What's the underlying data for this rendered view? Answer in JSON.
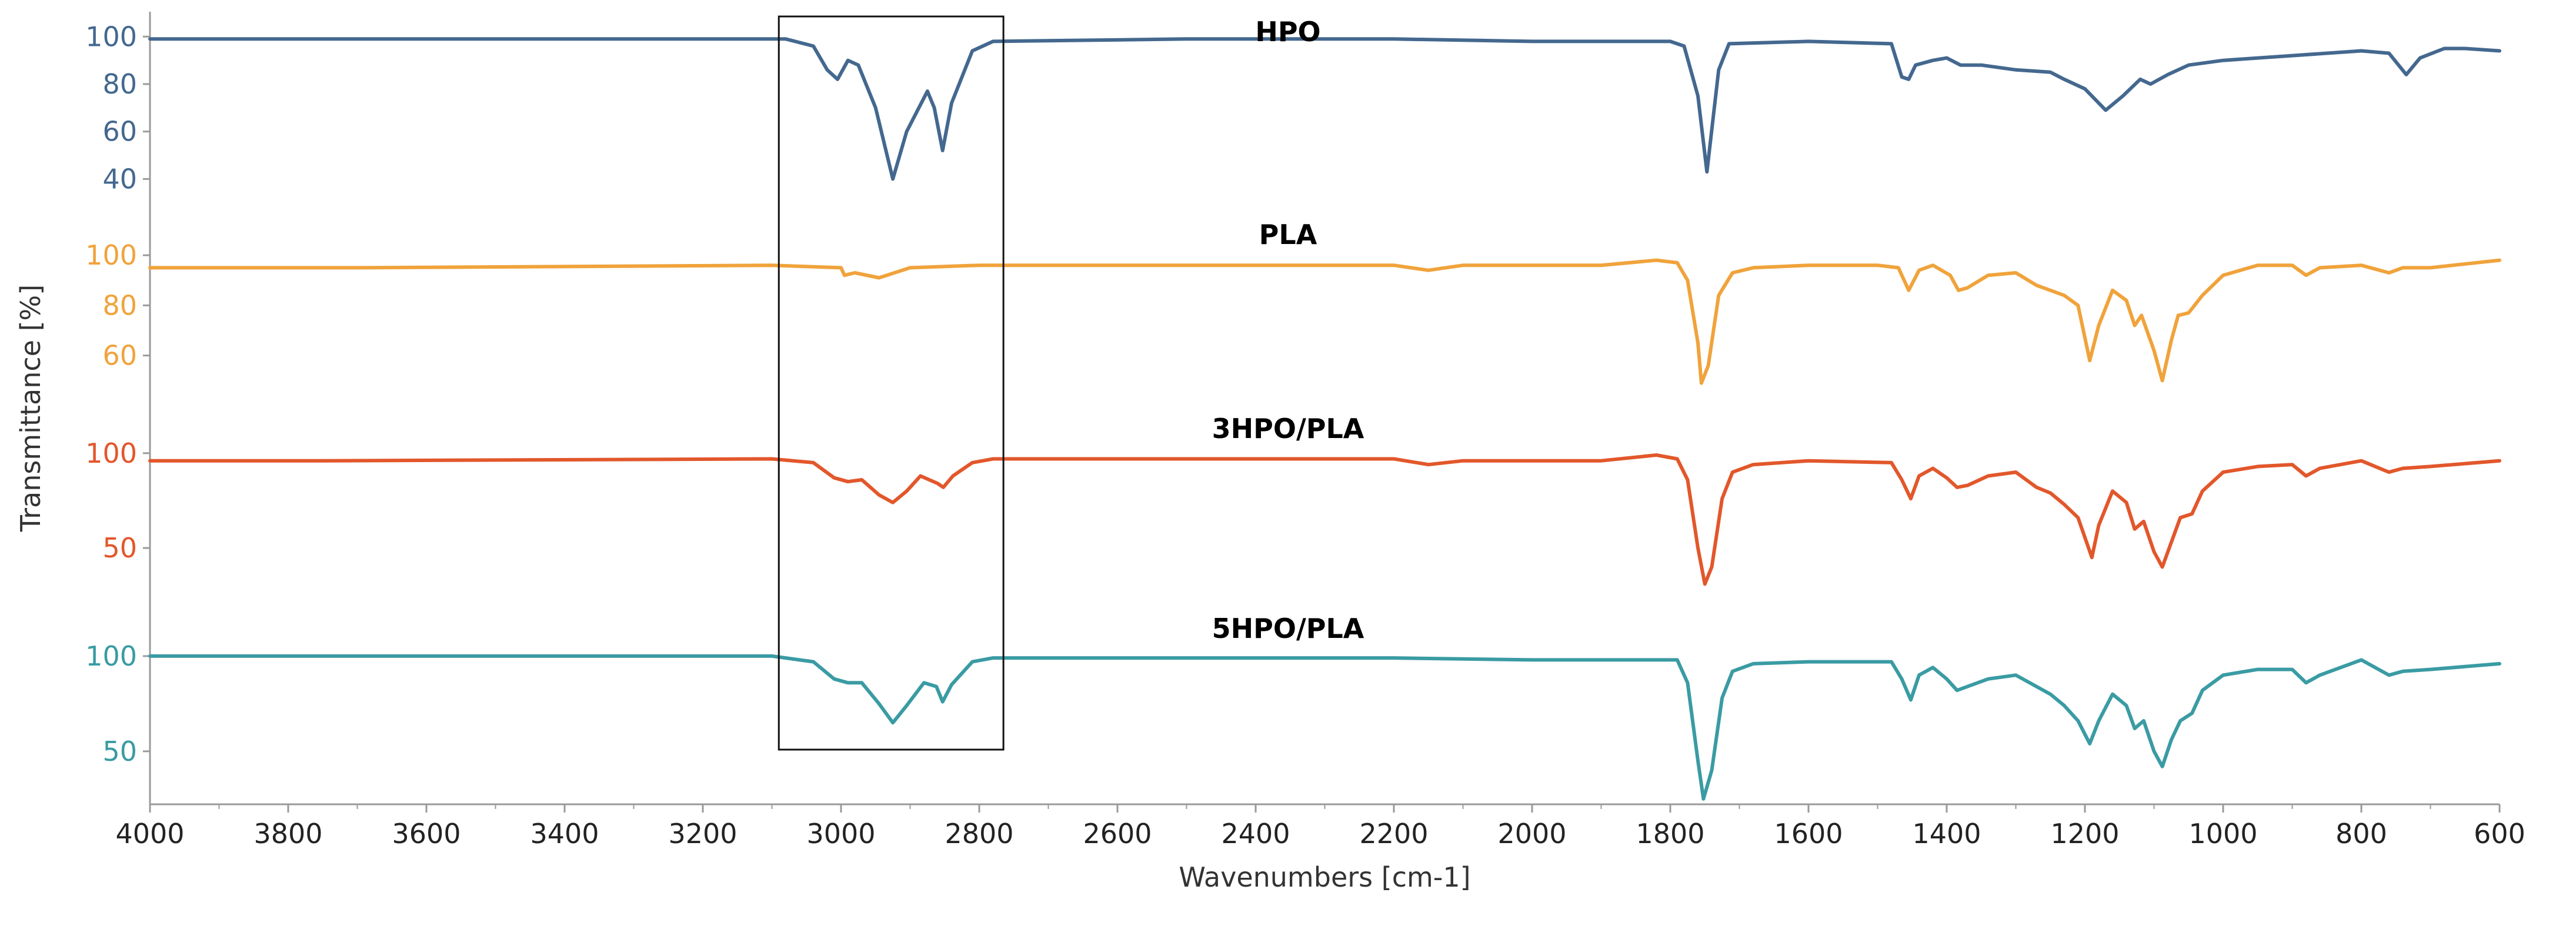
{
  "chart_data": {
    "type": "line",
    "title": "",
    "xlabel": "Wavenumbers [cm-1]",
    "ylabel": "Transmittance [%]",
    "xlim": [
      4000,
      600
    ],
    "x_reversed": true,
    "grid": false,
    "x_ticks": [
      "4000",
      "3800",
      "3600",
      "3400",
      "3200",
      "3000",
      "2800",
      "2600",
      "2400",
      "2200",
      "2000",
      "1800",
      "1600",
      "1400",
      "1200",
      "1000",
      "800",
      "600"
    ],
    "highlight_region": {
      "x": [
        3090,
        2765
      ],
      "label": ""
    },
    "series": [
      {
        "name": "HPO",
        "color": "#44688f",
        "ylim": [
          25,
          108
        ],
        "y_ticks": [
          "100",
          "80",
          "60",
          "40"
        ],
        "points": [
          [
            4000,
            99
          ],
          [
            3750,
            99
          ],
          [
            3200,
            99
          ],
          [
            3080,
            99
          ],
          [
            3040,
            96
          ],
          [
            3020,
            86
          ],
          [
            3005,
            82
          ],
          [
            2990,
            90
          ],
          [
            2975,
            88
          ],
          [
            2950,
            70
          ],
          [
            2925,
            40
          ],
          [
            2905,
            60
          ],
          [
            2875,
            77
          ],
          [
            2865,
            70
          ],
          [
            2853,
            52
          ],
          [
            2840,
            72
          ],
          [
            2810,
            94
          ],
          [
            2780,
            98
          ],
          [
            2500,
            99
          ],
          [
            2200,
            99
          ],
          [
            2000,
            98
          ],
          [
            1800,
            98
          ],
          [
            1780,
            96
          ],
          [
            1760,
            75
          ],
          [
            1747,
            43
          ],
          [
            1730,
            86
          ],
          [
            1715,
            97
          ],
          [
            1600,
            98
          ],
          [
            1480,
            97
          ],
          [
            1465,
            83
          ],
          [
            1455,
            82
          ],
          [
            1445,
            88
          ],
          [
            1420,
            90
          ],
          [
            1400,
            91
          ],
          [
            1380,
            88
          ],
          [
            1350,
            88
          ],
          [
            1300,
            86
          ],
          [
            1250,
            85
          ],
          [
            1230,
            82
          ],
          [
            1200,
            78
          ],
          [
            1170,
            69
          ],
          [
            1145,
            75
          ],
          [
            1120,
            82
          ],
          [
            1105,
            80
          ],
          [
            1080,
            84
          ],
          [
            1050,
            88
          ],
          [
            1000,
            90
          ],
          [
            900,
            92
          ],
          [
            800,
            94
          ],
          [
            760,
            93
          ],
          [
            735,
            84
          ],
          [
            715,
            91
          ],
          [
            680,
            95
          ],
          [
            650,
            95
          ],
          [
            600,
            94
          ]
        ]
      },
      {
        "name": "PLA",
        "color": "#f0a33b",
        "ylim": [
          40,
          108
        ],
        "y_ticks": [
          "100",
          "80",
          "60"
        ],
        "points": [
          [
            4000,
            95
          ],
          [
            3700,
            95
          ],
          [
            3100,
            96
          ],
          [
            3000,
            95
          ],
          [
            2995,
            92
          ],
          [
            2980,
            93
          ],
          [
            2945,
            91
          ],
          [
            2900,
            95
          ],
          [
            2800,
            96
          ],
          [
            2200,
            96
          ],
          [
            2150,
            94
          ],
          [
            2100,
            96
          ],
          [
            1900,
            96
          ],
          [
            1820,
            98
          ],
          [
            1790,
            97
          ],
          [
            1775,
            90
          ],
          [
            1760,
            65
          ],
          [
            1755,
            49
          ],
          [
            1745,
            56
          ],
          [
            1730,
            84
          ],
          [
            1710,
            93
          ],
          [
            1680,
            95
          ],
          [
            1600,
            96
          ],
          [
            1500,
            96
          ],
          [
            1470,
            95
          ],
          [
            1455,
            86
          ],
          [
            1440,
            94
          ],
          [
            1420,
            96
          ],
          [
            1395,
            92
          ],
          [
            1383,
            86
          ],
          [
            1370,
            87
          ],
          [
            1340,
            92
          ],
          [
            1300,
            93
          ],
          [
            1270,
            88
          ],
          [
            1250,
            86
          ],
          [
            1230,
            84
          ],
          [
            1210,
            80
          ],
          [
            1193,
            58
          ],
          [
            1180,
            72
          ],
          [
            1160,
            86
          ],
          [
            1140,
            82
          ],
          [
            1128,
            72
          ],
          [
            1118,
            76
          ],
          [
            1100,
            62
          ],
          [
            1088,
            50
          ],
          [
            1075,
            66
          ],
          [
            1065,
            76
          ],
          [
            1050,
            77
          ],
          [
            1030,
            84
          ],
          [
            1000,
            92
          ],
          [
            950,
            96
          ],
          [
            900,
            96
          ],
          [
            880,
            92
          ],
          [
            860,
            95
          ],
          [
            800,
            96
          ],
          [
            760,
            93
          ],
          [
            740,
            95
          ],
          [
            700,
            95
          ],
          [
            600,
            98
          ]
        ]
      },
      {
        "name": "3HPO/PLA",
        "color": "#e2572b",
        "ylim": [
          15,
          108
        ],
        "y_ticks": [
          "100",
          "50"
        ],
        "points": [
          [
            4000,
            96
          ],
          [
            3750,
            96
          ],
          [
            3100,
            97
          ],
          [
            3040,
            95
          ],
          [
            3010,
            87
          ],
          [
            2990,
            85
          ],
          [
            2970,
            86
          ],
          [
            2945,
            78
          ],
          [
            2925,
            74
          ],
          [
            2905,
            80
          ],
          [
            2885,
            88
          ],
          [
            2860,
            84
          ],
          [
            2852,
            82
          ],
          [
            2838,
            88
          ],
          [
            2810,
            95
          ],
          [
            2780,
            97
          ],
          [
            2500,
            97
          ],
          [
            2200,
            97
          ],
          [
            2150,
            94
          ],
          [
            2100,
            96
          ],
          [
            1900,
            96
          ],
          [
            1820,
            99
          ],
          [
            1790,
            97
          ],
          [
            1775,
            86
          ],
          [
            1760,
            50
          ],
          [
            1750,
            31
          ],
          [
            1740,
            40
          ],
          [
            1725,
            76
          ],
          [
            1710,
            90
          ],
          [
            1680,
            94
          ],
          [
            1600,
            96
          ],
          [
            1480,
            95
          ],
          [
            1465,
            86
          ],
          [
            1452,
            76
          ],
          [
            1440,
            88
          ],
          [
            1420,
            92
          ],
          [
            1400,
            87
          ],
          [
            1385,
            82
          ],
          [
            1370,
            83
          ],
          [
            1340,
            88
          ],
          [
            1300,
            90
          ],
          [
            1270,
            82
          ],
          [
            1250,
            79
          ],
          [
            1230,
            73
          ],
          [
            1210,
            66
          ],
          [
            1190,
            45
          ],
          [
            1180,
            62
          ],
          [
            1160,
            80
          ],
          [
            1140,
            74
          ],
          [
            1128,
            60
          ],
          [
            1115,
            64
          ],
          [
            1100,
            48
          ],
          [
            1088,
            40
          ],
          [
            1075,
            53
          ],
          [
            1062,
            66
          ],
          [
            1045,
            68
          ],
          [
            1030,
            80
          ],
          [
            1000,
            90
          ],
          [
            950,
            93
          ],
          [
            900,
            94
          ],
          [
            880,
            88
          ],
          [
            860,
            92
          ],
          [
            800,
            96
          ],
          [
            760,
            90
          ],
          [
            740,
            92
          ],
          [
            700,
            93
          ],
          [
            600,
            96
          ]
        ]
      },
      {
        "name": "5HPO/PLA",
        "color": "#3a9ba3",
        "ylim": [
          20,
          108
        ],
        "y_ticks": [
          "100",
          "50"
        ],
        "points": [
          [
            4000,
            100
          ],
          [
            3750,
            100
          ],
          [
            3100,
            100
          ],
          [
            3040,
            97
          ],
          [
            3010,
            88
          ],
          [
            2990,
            86
          ],
          [
            2970,
            86
          ],
          [
            2945,
            75
          ],
          [
            2925,
            65
          ],
          [
            2905,
            74
          ],
          [
            2880,
            86
          ],
          [
            2862,
            84
          ],
          [
            2853,
            76
          ],
          [
            2840,
            85
          ],
          [
            2810,
            97
          ],
          [
            2780,
            99
          ],
          [
            2500,
            99
          ],
          [
            2200,
            99
          ],
          [
            2000,
            98
          ],
          [
            1900,
            98
          ],
          [
            1790,
            98
          ],
          [
            1775,
            86
          ],
          [
            1760,
            45
          ],
          [
            1752,
            25
          ],
          [
            1740,
            40
          ],
          [
            1725,
            78
          ],
          [
            1710,
            92
          ],
          [
            1680,
            96
          ],
          [
            1600,
            97
          ],
          [
            1480,
            97
          ],
          [
            1465,
            88
          ],
          [
            1452,
            77
          ],
          [
            1440,
            90
          ],
          [
            1420,
            94
          ],
          [
            1400,
            88
          ],
          [
            1385,
            82
          ],
          [
            1370,
            84
          ],
          [
            1340,
            88
          ],
          [
            1300,
            90
          ],
          [
            1270,
            84
          ],
          [
            1250,
            80
          ],
          [
            1230,
            74
          ],
          [
            1210,
            66
          ],
          [
            1193,
            54
          ],
          [
            1180,
            66
          ],
          [
            1160,
            80
          ],
          [
            1140,
            74
          ],
          [
            1128,
            62
          ],
          [
            1115,
            66
          ],
          [
            1100,
            50
          ],
          [
            1088,
            42
          ],
          [
            1075,
            56
          ],
          [
            1062,
            66
          ],
          [
            1045,
            70
          ],
          [
            1030,
            82
          ],
          [
            1000,
            90
          ],
          [
            950,
            93
          ],
          [
            900,
            93
          ],
          [
            880,
            86
          ],
          [
            860,
            90
          ],
          [
            800,
            98
          ],
          [
            760,
            90
          ],
          [
            740,
            92
          ],
          [
            700,
            93
          ],
          [
            600,
            96
          ]
        ]
      }
    ]
  }
}
